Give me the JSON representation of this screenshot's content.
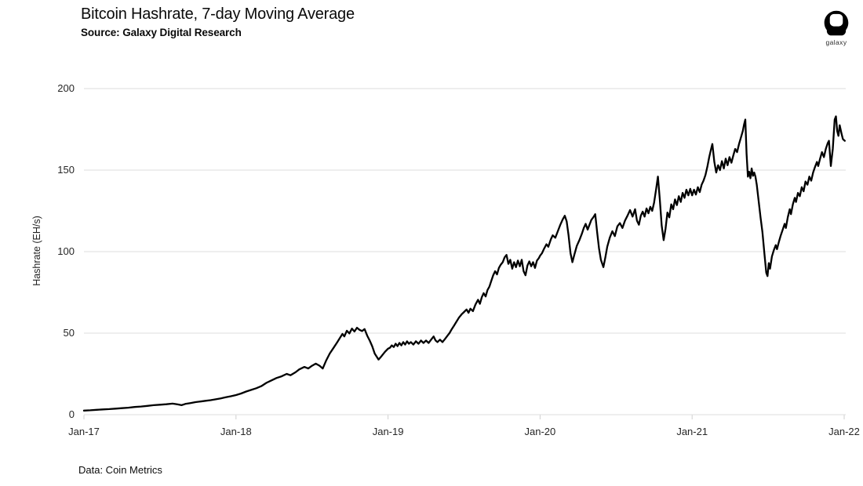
{
  "logo": {
    "text": "galaxy"
  },
  "colors": {
    "line": "#000000",
    "grid": "#dedede",
    "tick": "#cfcfcf",
    "text": "#0a0a0a"
  },
  "chart_data": {
    "type": "line",
    "title": "Bitcoin Hashrate, 7-day Moving Average",
    "subtitle": "Source: Galaxy Digital Research",
    "footer": "Data: Coin Metrics",
    "ylabel": "Hashrate (EH/s)",
    "ylim": [
      0,
      200
    ],
    "y_ticks": [
      0,
      50,
      100,
      150,
      200
    ],
    "x_tick_labels": [
      "Jan-17",
      "Jan-18",
      "Jan-19",
      "Jan-20",
      "Jan-21",
      "Jan-22"
    ],
    "x_tick_months": [
      0,
      12,
      24,
      36,
      48,
      60
    ],
    "x_unit": "months since Jan-2017",
    "xlim": [
      0,
      60.2
    ],
    "grid": "horizontal",
    "legend": "none",
    "series": [
      {
        "name": "Bitcoin hashrate, 7-day moving average (EH/s)",
        "points": [
          [
            0,
            2.5
          ],
          [
            0.5,
            2.7
          ],
          [
            1,
            3
          ],
          [
            1.5,
            3.2
          ],
          [
            2,
            3.4
          ],
          [
            2.5,
            3.7
          ],
          [
            3,
            4
          ],
          [
            3.5,
            4.3
          ],
          [
            4,
            4.7
          ],
          [
            4.5,
            5
          ],
          [
            5,
            5.4
          ],
          [
            5.5,
            5.8
          ],
          [
            6,
            6.1
          ],
          [
            6.5,
            6.4
          ],
          [
            7,
            6.8
          ],
          [
            7.4,
            6.3
          ],
          [
            7.7,
            5.8
          ],
          [
            8,
            6.6
          ],
          [
            8.4,
            7.1
          ],
          [
            8.8,
            7.7
          ],
          [
            9.2,
            8.1
          ],
          [
            9.6,
            8.5
          ],
          [
            10,
            8.9
          ],
          [
            10.4,
            9.4
          ],
          [
            10.8,
            10
          ],
          [
            11.2,
            10.7
          ],
          [
            11.6,
            11.3
          ],
          [
            12,
            12
          ],
          [
            12.4,
            13
          ],
          [
            12.8,
            14.2
          ],
          [
            13.2,
            15.2
          ],
          [
            13.6,
            16.2
          ],
          [
            14,
            17.5
          ],
          [
            14.4,
            19.5
          ],
          [
            14.8,
            21
          ],
          [
            15.2,
            22.5
          ],
          [
            15.6,
            23.5
          ],
          [
            16,
            25
          ],
          [
            16.3,
            24.2
          ],
          [
            16.7,
            26
          ],
          [
            17,
            27.8
          ],
          [
            17.4,
            29.3
          ],
          [
            17.7,
            28.3
          ],
          [
            18,
            30
          ],
          [
            18.3,
            31.3
          ],
          [
            18.6,
            30
          ],
          [
            18.85,
            28.3
          ],
          [
            19.1,
            33
          ],
          [
            19.4,
            37.5
          ],
          [
            19.7,
            41
          ],
          [
            20,
            44.5
          ],
          [
            20.2,
            47
          ],
          [
            20.4,
            49.5
          ],
          [
            20.55,
            48
          ],
          [
            20.75,
            51.5
          ],
          [
            20.95,
            49.8
          ],
          [
            21.15,
            52.8
          ],
          [
            21.35,
            51
          ],
          [
            21.55,
            53.3
          ],
          [
            21.75,
            52
          ],
          [
            21.95,
            51.3
          ],
          [
            22.15,
            52.5
          ],
          [
            22.35,
            48.5
          ],
          [
            22.55,
            45.5
          ],
          [
            22.75,
            42
          ],
          [
            22.95,
            37.5
          ],
          [
            23.25,
            33.8
          ],
          [
            23.5,
            36
          ],
          [
            23.75,
            38.5
          ],
          [
            24,
            40.5
          ],
          [
            24.15,
            41
          ],
          [
            24.3,
            42.5
          ],
          [
            24.45,
            41.5
          ],
          [
            24.6,
            43.5
          ],
          [
            24.75,
            42
          ],
          [
            24.9,
            44
          ],
          [
            25.05,
            42.5
          ],
          [
            25.2,
            44.5
          ],
          [
            25.35,
            43
          ],
          [
            25.5,
            45
          ],
          [
            25.65,
            43.5
          ],
          [
            25.8,
            44.5
          ],
          [
            26,
            43
          ],
          [
            26.2,
            45
          ],
          [
            26.4,
            43.5
          ],
          [
            26.6,
            45.5
          ],
          [
            26.8,
            44
          ],
          [
            27,
            45.5
          ],
          [
            27.2,
            44
          ],
          [
            27.4,
            46
          ],
          [
            27.6,
            48
          ],
          [
            27.75,
            45.5
          ],
          [
            27.9,
            44.5
          ],
          [
            28.1,
            46
          ],
          [
            28.3,
            44.5
          ],
          [
            28.5,
            46.5
          ],
          [
            28.7,
            48.5
          ],
          [
            28.85,
            50
          ],
          [
            29,
            52
          ],
          [
            29.2,
            54.5
          ],
          [
            29.4,
            57
          ],
          [
            29.6,
            59.5
          ],
          [
            29.8,
            61.5
          ],
          [
            30,
            63
          ],
          [
            30.2,
            64.5
          ],
          [
            30.35,
            62.5
          ],
          [
            30.5,
            65
          ],
          [
            30.7,
            63.5
          ],
          [
            30.9,
            67.5
          ],
          [
            31.1,
            70.5
          ],
          [
            31.25,
            68
          ],
          [
            31.4,
            72
          ],
          [
            31.55,
            74.5
          ],
          [
            31.7,
            72.5
          ],
          [
            31.85,
            76.5
          ],
          [
            32,
            78.5
          ],
          [
            32.15,
            82
          ],
          [
            32.3,
            85.5
          ],
          [
            32.45,
            88
          ],
          [
            32.6,
            86
          ],
          [
            32.75,
            90
          ],
          [
            32.9,
            92
          ],
          [
            33.05,
            93.5
          ],
          [
            33.2,
            96.5
          ],
          [
            33.35,
            98
          ],
          [
            33.5,
            92.5
          ],
          [
            33.65,
            95
          ],
          [
            33.8,
            89.5
          ],
          [
            33.95,
            93.5
          ],
          [
            34.1,
            90.5
          ],
          [
            34.25,
            94.5
          ],
          [
            34.4,
            91
          ],
          [
            34.55,
            95
          ],
          [
            34.7,
            88
          ],
          [
            34.85,
            85.5
          ],
          [
            35,
            91.5
          ],
          [
            35.15,
            94
          ],
          [
            35.3,
            91
          ],
          [
            35.45,
            93.5
          ],
          [
            35.6,
            90
          ],
          [
            35.75,
            94.5
          ],
          [
            35.9,
            96
          ],
          [
            36,
            97.5
          ],
          [
            36.15,
            99
          ],
          [
            36.3,
            101.5
          ],
          [
            36.5,
            104.5
          ],
          [
            36.65,
            103
          ],
          [
            36.85,
            107.5
          ],
          [
            37,
            110
          ],
          [
            37.2,
            108.5
          ],
          [
            37.4,
            112.5
          ],
          [
            37.6,
            116.5
          ],
          [
            37.8,
            120
          ],
          [
            37.95,
            122
          ],
          [
            38.1,
            118.5
          ],
          [
            38.25,
            110
          ],
          [
            38.4,
            99
          ],
          [
            38.55,
            93.5
          ],
          [
            38.7,
            98
          ],
          [
            38.9,
            103.5
          ],
          [
            39.1,
            107
          ],
          [
            39.3,
            111
          ],
          [
            39.45,
            114.5
          ],
          [
            39.6,
            117
          ],
          [
            39.75,
            113.5
          ],
          [
            39.9,
            116.5
          ],
          [
            40.05,
            119.5
          ],
          [
            40.2,
            121
          ],
          [
            40.35,
            123
          ],
          [
            40.5,
            112
          ],
          [
            40.65,
            102
          ],
          [
            40.8,
            95
          ],
          [
            41,
            90.5
          ],
          [
            41.15,
            96.5
          ],
          [
            41.3,
            103
          ],
          [
            41.5,
            108.5
          ],
          [
            41.7,
            112.5
          ],
          [
            41.9,
            109.5
          ],
          [
            42.1,
            115.5
          ],
          [
            42.3,
            117.5
          ],
          [
            42.5,
            114.5
          ],
          [
            42.7,
            119
          ],
          [
            42.9,
            122
          ],
          [
            43.1,
            125.5
          ],
          [
            43.3,
            121.5
          ],
          [
            43.5,
            126
          ],
          [
            43.65,
            119
          ],
          [
            43.8,
            116.5
          ],
          [
            43.95,
            122
          ],
          [
            44.1,
            124.5
          ],
          [
            44.25,
            121.5
          ],
          [
            44.4,
            126.5
          ],
          [
            44.55,
            123.5
          ],
          [
            44.7,
            127.5
          ],
          [
            44.85,
            125
          ],
          [
            45,
            130
          ],
          [
            45.15,
            138
          ],
          [
            45.3,
            146
          ],
          [
            45.45,
            132
          ],
          [
            45.6,
            116
          ],
          [
            45.75,
            107
          ],
          [
            45.9,
            114
          ],
          [
            46.05,
            124
          ],
          [
            46.2,
            121
          ],
          [
            46.35,
            129
          ],
          [
            46.5,
            126
          ],
          [
            46.65,
            132
          ],
          [
            46.8,
            128.5
          ],
          [
            46.95,
            134
          ],
          [
            47.1,
            130.5
          ],
          [
            47.25,
            136
          ],
          [
            47.4,
            133
          ],
          [
            47.55,
            138
          ],
          [
            47.7,
            134.5
          ],
          [
            47.85,
            138.5
          ],
          [
            48,
            134.5
          ],
          [
            48.15,
            138
          ],
          [
            48.3,
            135
          ],
          [
            48.45,
            139.5
          ],
          [
            48.6,
            136.5
          ],
          [
            48.75,
            141
          ],
          [
            48.9,
            143.5
          ],
          [
            49.05,
            147
          ],
          [
            49.2,
            152
          ],
          [
            49.35,
            158
          ],
          [
            49.5,
            163
          ],
          [
            49.6,
            166
          ],
          [
            49.75,
            155
          ],
          [
            49.9,
            148.5
          ],
          [
            50.05,
            153
          ],
          [
            50.2,
            150
          ],
          [
            50.35,
            155.5
          ],
          [
            50.5,
            151
          ],
          [
            50.65,
            157
          ],
          [
            50.8,
            153
          ],
          [
            50.95,
            158
          ],
          [
            51.1,
            154.5
          ],
          [
            51.25,
            159
          ],
          [
            51.4,
            163
          ],
          [
            51.55,
            161
          ],
          [
            51.7,
            166
          ],
          [
            51.85,
            170
          ],
          [
            52,
            174
          ],
          [
            52.1,
            178
          ],
          [
            52.2,
            181
          ],
          [
            52.3,
            160
          ],
          [
            52.4,
            146
          ],
          [
            52.5,
            149
          ],
          [
            52.6,
            145
          ],
          [
            52.7,
            151
          ],
          [
            52.8,
            146.5
          ],
          [
            52.9,
            148.5
          ],
          [
            53,
            146
          ],
          [
            53.1,
            141
          ],
          [
            53.25,
            131
          ],
          [
            53.4,
            121
          ],
          [
            53.55,
            112
          ],
          [
            53.7,
            99
          ],
          [
            53.85,
            87
          ],
          [
            53.95,
            85
          ],
          [
            54.05,
            93
          ],
          [
            54.15,
            89.5
          ],
          [
            54.3,
            97
          ],
          [
            54.45,
            101
          ],
          [
            54.6,
            104
          ],
          [
            54.7,
            101.5
          ],
          [
            54.85,
            106
          ],
          [
            55,
            110
          ],
          [
            55.15,
            113.5
          ],
          [
            55.3,
            117
          ],
          [
            55.4,
            114.5
          ],
          [
            55.55,
            121
          ],
          [
            55.7,
            126
          ],
          [
            55.8,
            123
          ],
          [
            55.95,
            129
          ],
          [
            56.1,
            133
          ],
          [
            56.2,
            130.5
          ],
          [
            56.35,
            136
          ],
          [
            56.5,
            134
          ],
          [
            56.65,
            139.5
          ],
          [
            56.8,
            137
          ],
          [
            56.95,
            143
          ],
          [
            57.1,
            141
          ],
          [
            57.25,
            146
          ],
          [
            57.4,
            143.5
          ],
          [
            57.55,
            148.5
          ],
          [
            57.7,
            152
          ],
          [
            57.85,
            155
          ],
          [
            57.95,
            152.5
          ],
          [
            58.1,
            157
          ],
          [
            58.25,
            161
          ],
          [
            58.4,
            158
          ],
          [
            58.55,
            163
          ],
          [
            58.7,
            166.5
          ],
          [
            58.8,
            168
          ],
          [
            58.95,
            152.5
          ],
          [
            59.1,
            163
          ],
          [
            59.25,
            181
          ],
          [
            59.35,
            183
          ],
          [
            59.45,
            174
          ],
          [
            59.55,
            171
          ],
          [
            59.65,
            177.5
          ],
          [
            59.8,
            172
          ],
          [
            59.9,
            169
          ],
          [
            60.05,
            168
          ]
        ]
      }
    ]
  }
}
